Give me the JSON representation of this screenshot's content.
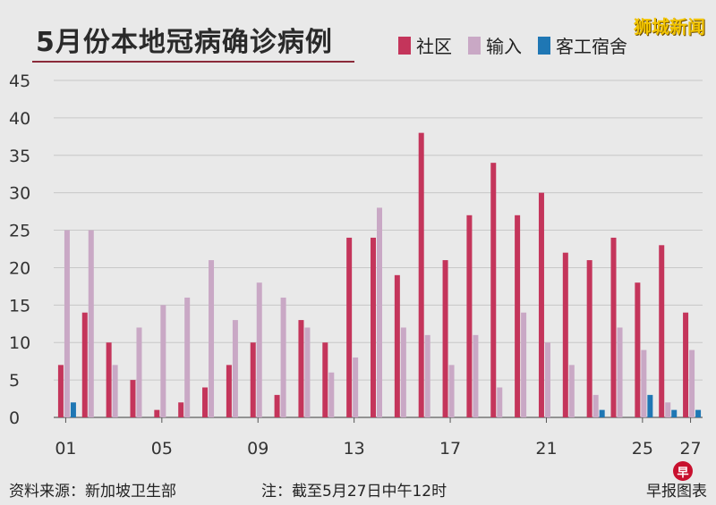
{
  "header": {
    "title": "5月份本地冠病确诊病例",
    "brand": "狮城新闻"
  },
  "legend": [
    {
      "label": "社区",
      "color": "#c4355b"
    },
    {
      "label": "输入",
      "color": "#c9a8c5"
    },
    {
      "label": "客工宿舍",
      "color": "#1f77b4"
    }
  ],
  "footer": {
    "source": "资料来源：新加坡卫生部",
    "note": "注：截至5月27日中午12时",
    "credit": "早报图表",
    "logo_glyph": "早"
  },
  "chart_data": {
    "type": "bar",
    "title": "5月份本地冠病确诊病例",
    "xlabel": "",
    "ylabel": "",
    "ylim": [
      0,
      45
    ],
    "yticks": [
      0,
      5,
      10,
      15,
      20,
      25,
      30,
      35,
      40,
      45
    ],
    "grid": true,
    "legend_position": "top-right",
    "categories": [
      "01",
      "02",
      "03",
      "04",
      "05",
      "06",
      "07",
      "08",
      "09",
      "10",
      "11",
      "12",
      "13",
      "14",
      "15",
      "16",
      "17",
      "18",
      "19",
      "20",
      "21",
      "22",
      "23",
      "24",
      "25",
      "26",
      "27"
    ],
    "xtick_labels": [
      "01",
      "05",
      "09",
      "13",
      "17",
      "21",
      "25",
      "27"
    ],
    "series": [
      {
        "name": "社区",
        "color": "#c4355b",
        "values": [
          7,
          14,
          10,
          5,
          1,
          2,
          4,
          7,
          10,
          3,
          13,
          10,
          24,
          24,
          19,
          38,
          21,
          27,
          34,
          27,
          30,
          22,
          21,
          24,
          18,
          23,
          14
        ]
      },
      {
        "name": "输入",
        "color": "#c9a8c5",
        "values": [
          25,
          25,
          7,
          12,
          15,
          16,
          21,
          13,
          18,
          16,
          12,
          6,
          8,
          28,
          12,
          11,
          7,
          11,
          4,
          14,
          10,
          7,
          3,
          12,
          9,
          2,
          9
        ]
      },
      {
        "name": "客工宿舍",
        "color": "#1f77b4",
        "values": [
          2,
          0,
          0,
          0,
          0,
          0,
          0,
          0,
          0,
          0,
          0,
          0,
          0,
          0,
          0,
          0,
          0,
          0,
          0,
          0,
          0,
          0,
          1,
          0,
          3,
          1,
          1
        ]
      }
    ]
  }
}
